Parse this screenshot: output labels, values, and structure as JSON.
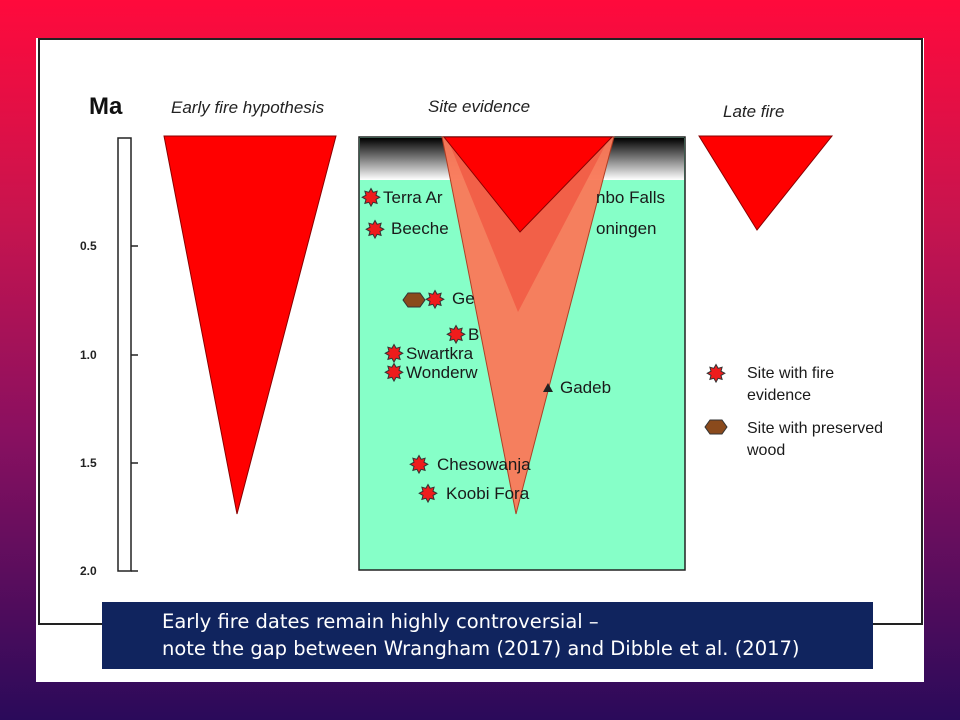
{
  "figure": {
    "y_axis_unit": "Ma",
    "y_ticks": [
      "0.5",
      "1.0",
      "1.5",
      "2.0"
    ],
    "columns": {
      "early": "Early fire hypothesis",
      "site": "Site evidence",
      "late": "Late fire"
    },
    "sites": [
      {
        "name": "Terra Amata",
        "visible": "Terra Ar",
        "marker": "star"
      },
      {
        "name": "Bamboo Falls",
        "visible": "nbo Falls",
        "marker": "none"
      },
      {
        "name": "Beeches Pit",
        "visible": "Beeche",
        "marker": "star"
      },
      {
        "name": "Schöningen",
        "visible": "oningen",
        "marker": "none"
      },
      {
        "name": "Gesher",
        "visible": "Ge",
        "marker": "star+hexagon"
      },
      {
        "name": "Bnot",
        "visible": "B",
        "marker": "star"
      },
      {
        "name": "Swartkrans",
        "visible": "Swartkra",
        "marker": "star"
      },
      {
        "name": "Wonderwerk",
        "visible": "Wonderw",
        "marker": "star"
      },
      {
        "name": "Gadeb",
        "visible": "Gadeb",
        "marker": "none"
      },
      {
        "name": "Chesowanja",
        "visible": "Chesowanja",
        "marker": "star"
      },
      {
        "name": "Koobi Fora",
        "visible": "Koobi Fora",
        "marker": "star"
      }
    ],
    "legend": {
      "fire": "Site with fire evidence",
      "wood": "Site with preserved wood"
    },
    "colors": {
      "triangle_red": "#ff0000",
      "overlay_salmon": "#fa7a5a",
      "site_fill": "#86ffc8",
      "wood_brown": "#8a4a1c"
    }
  },
  "caption": {
    "line1": "Early fire dates remain highly controversial –",
    "line2": "note the gap between Wrangham (2017) and Dibble et al. (2017)"
  }
}
